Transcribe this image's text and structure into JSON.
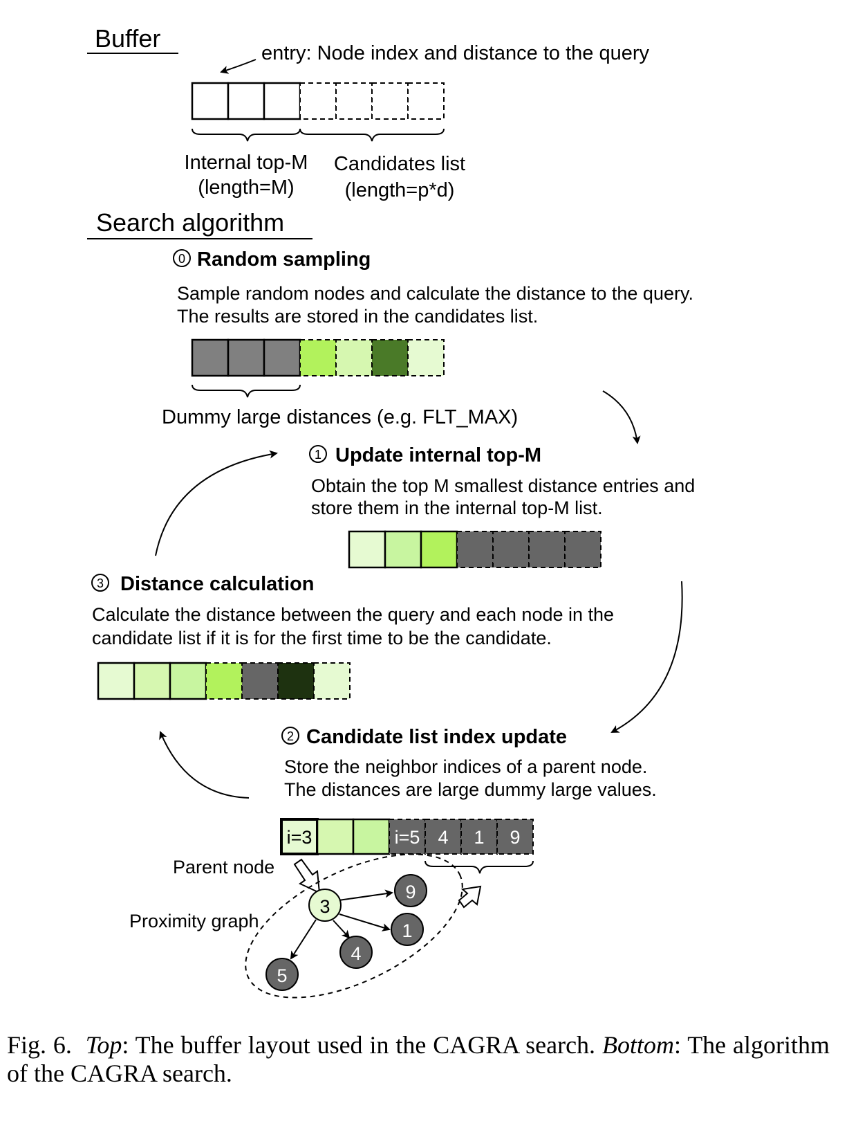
{
  "buffer": {
    "heading": "Buffer",
    "entry_label": "entry: Node index and distance to the query",
    "topm_label_1": "Internal top-M",
    "topm_label_2": "(length=M)",
    "cand_label_1": "Candidates list",
    "cand_label_2": "(length=p*d)"
  },
  "search": {
    "heading": "Search algorithm",
    "step0": {
      "marker": "0",
      "title": "Random sampling",
      "line1": "Sample random nodes and calculate the distance to the query.",
      "line2": "The results are stored in the candidates list.",
      "brace_label": "Dummy large distances (e.g. FLT_MAX)",
      "cells": [
        "#808080",
        "#808080",
        "#808080",
        "#b2f25c",
        "#d6f7b0",
        "#4a7a28",
        "#e6fad2"
      ]
    },
    "step1": {
      "marker": "1",
      "title": "Update internal top-M",
      "line1": "Obtain the top M smallest distance entries and",
      "line2": "store them in the internal top-M list.",
      "cells": [
        "#e6fad2",
        "#c8f5a0",
        "#b2f25c",
        "#666666",
        "#666666",
        "#666666",
        "#666666"
      ]
    },
    "step3": {
      "marker": "3",
      "title": "Distance calculation",
      "line1": "Calculate the distance between the query and each node in the",
      "line2": "candidate list if it is for the first time to be the candidate.",
      "cells": [
        "#e6fad2",
        "#d6f7b0",
        "#c8f5a0",
        "#b2f25c",
        "#666666",
        "#1e3210",
        "#e6fad2"
      ]
    },
    "step2": {
      "marker": "2",
      "title": "Candidate list index update",
      "line1": "Store the neighbor indices of a parent node.",
      "line2": "The distances are large dummy large values.",
      "cell_labels": [
        "i=3",
        "",
        "",
        "i=5",
        "4",
        "1",
        "9"
      ],
      "parent_label": "Parent node",
      "graph_label": "Proximity graph",
      "nodes": [
        "3",
        "9",
        "1",
        "4",
        "5"
      ]
    }
  },
  "caption": {
    "prefix": "Fig. 6.",
    "top_word": "Top",
    "top_text": ": The buffer layout used in the CAGRA search.",
    "bottom_word": "Bottom",
    "bottom_text": ": The algorithm of the CAGRA search."
  },
  "colors": {
    "dummy_gray": "#808080",
    "dark_gray": "#666666",
    "node_parent": "#e6fad2"
  }
}
